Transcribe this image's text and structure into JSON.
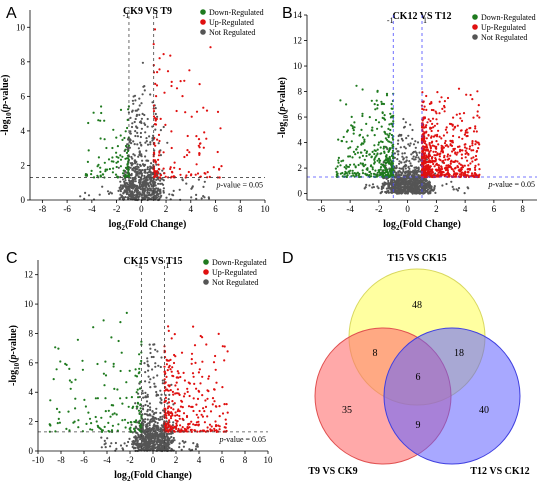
{
  "colors": {
    "down": "#1f7a1f",
    "up": "#e01010",
    "not": "#555555",
    "venn_a": "#ffff80",
    "venn_b": "#ff7070",
    "venn_c": "#6060ff"
  },
  "legend": {
    "down": "Down-Regulated",
    "up": "Up-Regulated",
    "not": "Not Regulated"
  },
  "chart_data": [
    {
      "type": "scatter",
      "panel_label": "A",
      "title": "CK9 VS T9",
      "xlabel_base": "log",
      "xlabel_sub": "2",
      "xlabel_rest": "(Fold Change)",
      "ylabel_base": "-log",
      "ylabel_sub": "10",
      "ylabel_rest": "(p-value)",
      "xlim": [
        -9,
        10
      ],
      "ylim": [
        0,
        11
      ],
      "xticks": [
        -8,
        -6,
        -4,
        -2,
        0,
        2,
        4,
        6,
        8,
        10
      ],
      "yticks": [
        0,
        2,
        4,
        6,
        8,
        10
      ],
      "fc_threshold": [
        -1,
        1
      ],
      "pvalue_line": 1.3,
      "fc_tick_labels": [
        "-1",
        "1"
      ],
      "pvalue_label_prefix": "p",
      "pvalue_label_rest": "-value = 0.05",
      "series": [
        {
          "name": "Down-Regulated",
          "x_range": [
            -4.5,
            -1
          ],
          "y_range": [
            1.3,
            6.5
          ],
          "count": 110
        },
        {
          "name": "Up-Regulated",
          "x_range": [
            1,
            6.5
          ],
          "y_range": [
            1.3,
            10.5
          ],
          "count": 150
        },
        {
          "name": "Not Regulated",
          "x_range": [
            -5,
            5.5
          ],
          "y_range": [
            0,
            9
          ],
          "count": 700
        }
      ]
    },
    {
      "type": "scatter",
      "panel_label": "B",
      "title": "CK12 VS T12",
      "xlabel_base": "log",
      "xlabel_sub": "2",
      "xlabel_rest": "(Fold Change)",
      "ylabel_base": "-log",
      "ylabel_sub": "10",
      "ylabel_rest": "(p-value)",
      "xlim": [
        -7,
        9
      ],
      "ylim": [
        -0.5,
        14
      ],
      "xticks": [
        -6,
        -4,
        -2,
        0,
        2,
        4,
        6,
        8
      ],
      "yticks": [
        0,
        2,
        4,
        6,
        8,
        10,
        12,
        14
      ],
      "fc_threshold": [
        -1,
        1
      ],
      "pvalue_line": 1.3,
      "fc_tick_labels": [
        "-1",
        "1"
      ],
      "pvalue_label_prefix": "p",
      "pvalue_label_rest": "-value = 0.05",
      "series": [
        {
          "name": "Down-Regulated",
          "x_range": [
            -5,
            -1
          ],
          "y_range": [
            1.3,
            9.5
          ],
          "count": 400
        },
        {
          "name": "Up-Regulated",
          "x_range": [
            1,
            5
          ],
          "y_range": [
            1.3,
            8.5
          ],
          "count": 700
        },
        {
          "name": "Not Regulated",
          "x_range": [
            -3,
            4.5
          ],
          "y_range": [
            0,
            7
          ],
          "count": 900
        }
      ]
    },
    {
      "type": "scatter",
      "panel_label": "C",
      "title": "CK15 VS T15",
      "xlabel_base": "log",
      "xlabel_sub": "2",
      "xlabel_rest": "(Fold Change)",
      "ylabel_base": "-log",
      "ylabel_sub": "10",
      "ylabel_rest": "(p-value)",
      "xlim": [
        -10,
        10
      ],
      "ylim": [
        0,
        13
      ],
      "xticks": [
        -10,
        -8,
        -6,
        -4,
        -2,
        0,
        2,
        4,
        6,
        8,
        10
      ],
      "yticks": [
        0,
        2,
        4,
        6,
        8,
        10,
        12
      ],
      "fc_threshold": [
        -1,
        1
      ],
      "pvalue_line": 1.3,
      "fc_tick_labels": [
        "-1",
        "1"
      ],
      "pvalue_label_prefix": "p",
      "pvalue_label_rest": "-value = 0.05",
      "series": [
        {
          "name": "Down-Regulated",
          "x_range": [
            -9,
            -1
          ],
          "y_range": [
            1.3,
            10
          ],
          "count": 160
        },
        {
          "name": "Up-Regulated",
          "x_range": [
            1,
            6.5
          ],
          "y_range": [
            1.3,
            10.5
          ],
          "count": 320
        },
        {
          "name": "Not Regulated",
          "x_range": [
            -4.5,
            4
          ],
          "y_range": [
            0,
            9
          ],
          "count": 800
        }
      ]
    },
    {
      "type": "venn",
      "panel_label": "D",
      "sets": [
        "T15 VS CK15",
        "T9 VS CK9",
        "T12 VS CK12"
      ],
      "regions": {
        "a_only": 48,
        "b_only": 35,
        "c_only": 40,
        "ab": 8,
        "ac": 18,
        "bc": 9,
        "abc": 6
      }
    }
  ]
}
